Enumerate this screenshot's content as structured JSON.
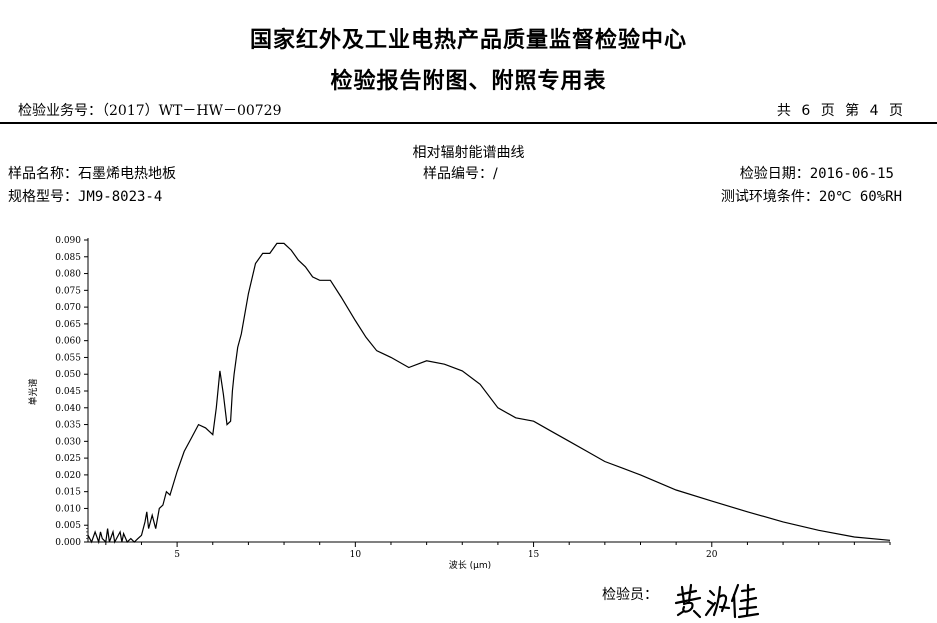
{
  "header": {
    "title_line1": "国家红外及工业电热产品质量监督检验中心",
    "title_line2": "检验报告附图、附照专用表",
    "serial_label": "检验业务号：",
    "serial_value": "（2017）WT－HW－00729",
    "pages_text": "共  6  页   第  4  页"
  },
  "info": {
    "chart_title": "相对辐射能谱曲线",
    "sample_name_label": "样品名称：",
    "sample_name_value": "石墨烯电热地板",
    "sample_no_label": "样品编号：",
    "sample_no_value": "/",
    "date_label": "检验日期：",
    "date_value": "2016-06-15",
    "model_label": "规格型号：",
    "model_value": "JM9-8023-4",
    "env_label": "测试环境条件：",
    "env_value": "20℃ 60%RH"
  },
  "footer": {
    "inspector_label": "检验员："
  },
  "signature": {
    "text": "黄治佳",
    "color": "#000000"
  },
  "chart_data": {
    "type": "line",
    "xlabel": "波长 (μm)",
    "ylabel": "单光谱",
    "xlim": [
      2.5,
      25
    ],
    "ylim": [
      0,
      0.09
    ],
    "xticks": [
      5,
      10,
      15,
      20
    ],
    "yticks": [
      0.0,
      0.005,
      0.01,
      0.015,
      0.02,
      0.025,
      0.03,
      0.035,
      0.04,
      0.045,
      0.05,
      0.055,
      0.06,
      0.065,
      0.07,
      0.075,
      0.08,
      0.085,
      0.09
    ],
    "grid": false,
    "line_color": "#000000",
    "series": [
      {
        "x": [
          2.5,
          2.6,
          2.7,
          2.8,
          2.85,
          2.9,
          3.0,
          3.05,
          3.1,
          3.2,
          3.25,
          3.3,
          3.4,
          3.45,
          3.5,
          3.6,
          3.7,
          3.8,
          3.9,
          4.0,
          4.1,
          4.15,
          4.2,
          4.3,
          4.4,
          4.5,
          4.6,
          4.7,
          4.8,
          5.0,
          5.2,
          5.4,
          5.6,
          5.8,
          5.9,
          6.0,
          6.1,
          6.2,
          6.3,
          6.4,
          6.5,
          6.55,
          6.6,
          6.7,
          6.8,
          7.0,
          7.2,
          7.4,
          7.6,
          7.8,
          8.0,
          8.2,
          8.4,
          8.6,
          8.8,
          9.0,
          9.3,
          9.6,
          10.0,
          10.3,
          10.6,
          11.0,
          11.5,
          12.0,
          12.5,
          13.0,
          13.5,
          14.0,
          14.5,
          15.0,
          15.5,
          16.0,
          16.5,
          17.0,
          17.5,
          18.0,
          19.0,
          20.0,
          21.0,
          22.0,
          23.0,
          24.0,
          25.0
        ],
        "values": [
          0.002,
          0.0,
          0.003,
          0.0,
          0.003,
          0.001,
          0.0,
          0.004,
          0.0,
          0.003,
          0.0,
          0.001,
          0.003,
          0.0,
          0.0025,
          0.0,
          0.001,
          0.0,
          0.001,
          0.002,
          0.006,
          0.009,
          0.004,
          0.008,
          0.004,
          0.01,
          0.011,
          0.015,
          0.014,
          0.021,
          0.027,
          0.031,
          0.035,
          0.034,
          0.033,
          0.032,
          0.04,
          0.051,
          0.044,
          0.035,
          0.036,
          0.045,
          0.05,
          0.058,
          0.062,
          0.074,
          0.083,
          0.086,
          0.086,
          0.089,
          0.089,
          0.087,
          0.084,
          0.082,
          0.079,
          0.078,
          0.078,
          0.073,
          0.066,
          0.061,
          0.057,
          0.055,
          0.052,
          0.054,
          0.053,
          0.051,
          0.047,
          0.04,
          0.037,
          0.036,
          0.033,
          0.03,
          0.027,
          0.024,
          0.022,
          0.02,
          0.0155,
          0.0122,
          0.009,
          0.006,
          0.0035,
          0.0015,
          0.0005
        ]
      }
    ]
  }
}
